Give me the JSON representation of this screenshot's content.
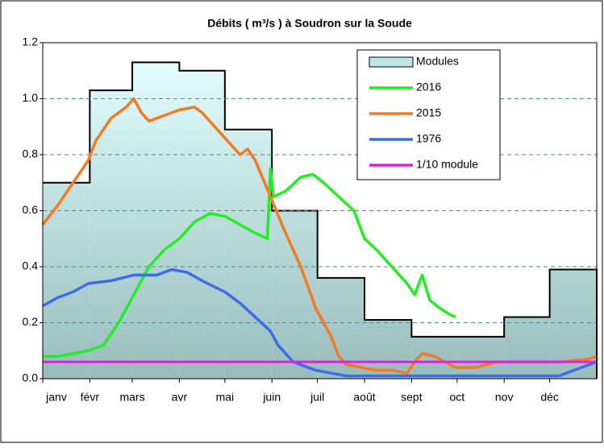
{
  "chart_data": {
    "type": "line",
    "title": "Débits ( m³/s ) à Soudron sur la Soude",
    "xlim": [
      0,
      365
    ],
    "xticks": [
      {
        "value": 0,
        "label": "janv"
      },
      {
        "value": 31,
        "label": "févr"
      },
      {
        "value": 59,
        "label": "mars"
      },
      {
        "value": 90,
        "label": "avr"
      },
      {
        "value": 120,
        "label": "mai"
      },
      {
        "value": 151,
        "label": "juin"
      },
      {
        "value": 181,
        "label": "juil"
      },
      {
        "value": 212,
        "label": "août"
      },
      {
        "value": 243,
        "label": "sept"
      },
      {
        "value": 273,
        "label": "oct"
      },
      {
        "value": 304,
        "label": "nov"
      },
      {
        "value": 334,
        "label": "déc"
      }
    ],
    "ylim": [
      0,
      1.2
    ],
    "yticks": [
      {
        "value": 0,
        "label": "0.0"
      },
      0.2,
      0.4,
      0.6,
      0.8,
      {
        "value": 1,
        "label": "1.0"
      },
      1.2
    ],
    "grid": true,
    "series": [
      {
        "name": "Modules",
        "kind": "step-area",
        "color": "#000000",
        "x": [
          0,
          31,
          59,
          90,
          120,
          151,
          181,
          212,
          243,
          273,
          304,
          334
        ],
        "values": [
          0.7,
          1.03,
          1.13,
          1.1,
          0.89,
          0.6,
          0.36,
          0.21,
          0.15,
          0.15,
          0.22,
          0.39
        ]
      },
      {
        "name": "2016",
        "color": "#22ee22",
        "x": [
          0,
          10,
          20,
          30,
          40,
          50,
          60,
          70,
          80,
          90,
          100,
          110,
          120,
          130,
          140,
          148,
          150,
          152,
          160,
          170,
          178,
          185,
          195,
          205,
          212,
          220,
          230,
          240,
          245,
          250,
          255,
          262,
          268,
          272
        ],
        "values": [
          0.08,
          0.08,
          0.09,
          0.1,
          0.12,
          0.2,
          0.3,
          0.4,
          0.46,
          0.5,
          0.56,
          0.59,
          0.58,
          0.55,
          0.52,
          0.5,
          0.75,
          0.65,
          0.67,
          0.72,
          0.73,
          0.7,
          0.65,
          0.6,
          0.5,
          0.46,
          0.4,
          0.34,
          0.3,
          0.37,
          0.28,
          0.25,
          0.23,
          0.22
        ]
      },
      {
        "name": "2015",
        "color": "#f47a20",
        "x": [
          0,
          10,
          20,
          30,
          35,
          45,
          55,
          60,
          65,
          70,
          80,
          90,
          100,
          105,
          110,
          120,
          130,
          135,
          140,
          150,
          160,
          170,
          180,
          190,
          195,
          200,
          210,
          220,
          230,
          240,
          245,
          250,
          258,
          265,
          272,
          285,
          300,
          320,
          340,
          360,
          365
        ],
        "values": [
          0.55,
          0.62,
          0.7,
          0.78,
          0.85,
          0.93,
          0.97,
          1.0,
          0.95,
          0.92,
          0.94,
          0.96,
          0.97,
          0.95,
          0.92,
          0.86,
          0.8,
          0.82,
          0.78,
          0.65,
          0.52,
          0.4,
          0.25,
          0.15,
          0.08,
          0.05,
          0.04,
          0.03,
          0.03,
          0.02,
          0.06,
          0.09,
          0.08,
          0.06,
          0.04,
          0.04,
          0.06,
          0.06,
          0.06,
          0.07,
          0.08
        ]
      },
      {
        "name": "1976",
        "color": "#3a6ee8",
        "x": [
          0,
          10,
          20,
          30,
          45,
          60,
          75,
          85,
          95,
          105,
          120,
          130,
          140,
          150,
          155,
          165,
          180,
          200,
          230,
          260,
          300,
          340,
          355,
          365
        ],
        "values": [
          0.26,
          0.29,
          0.31,
          0.34,
          0.35,
          0.37,
          0.37,
          0.39,
          0.38,
          0.35,
          0.31,
          0.27,
          0.22,
          0.17,
          0.12,
          0.06,
          0.03,
          0.01,
          0.01,
          0.01,
          0.01,
          0.01,
          0.04,
          0.06
        ]
      },
      {
        "name": "1/10 module",
        "color": "#e020e0",
        "x": [
          0,
          365
        ],
        "values": [
          0.06,
          0.06
        ]
      }
    ]
  }
}
